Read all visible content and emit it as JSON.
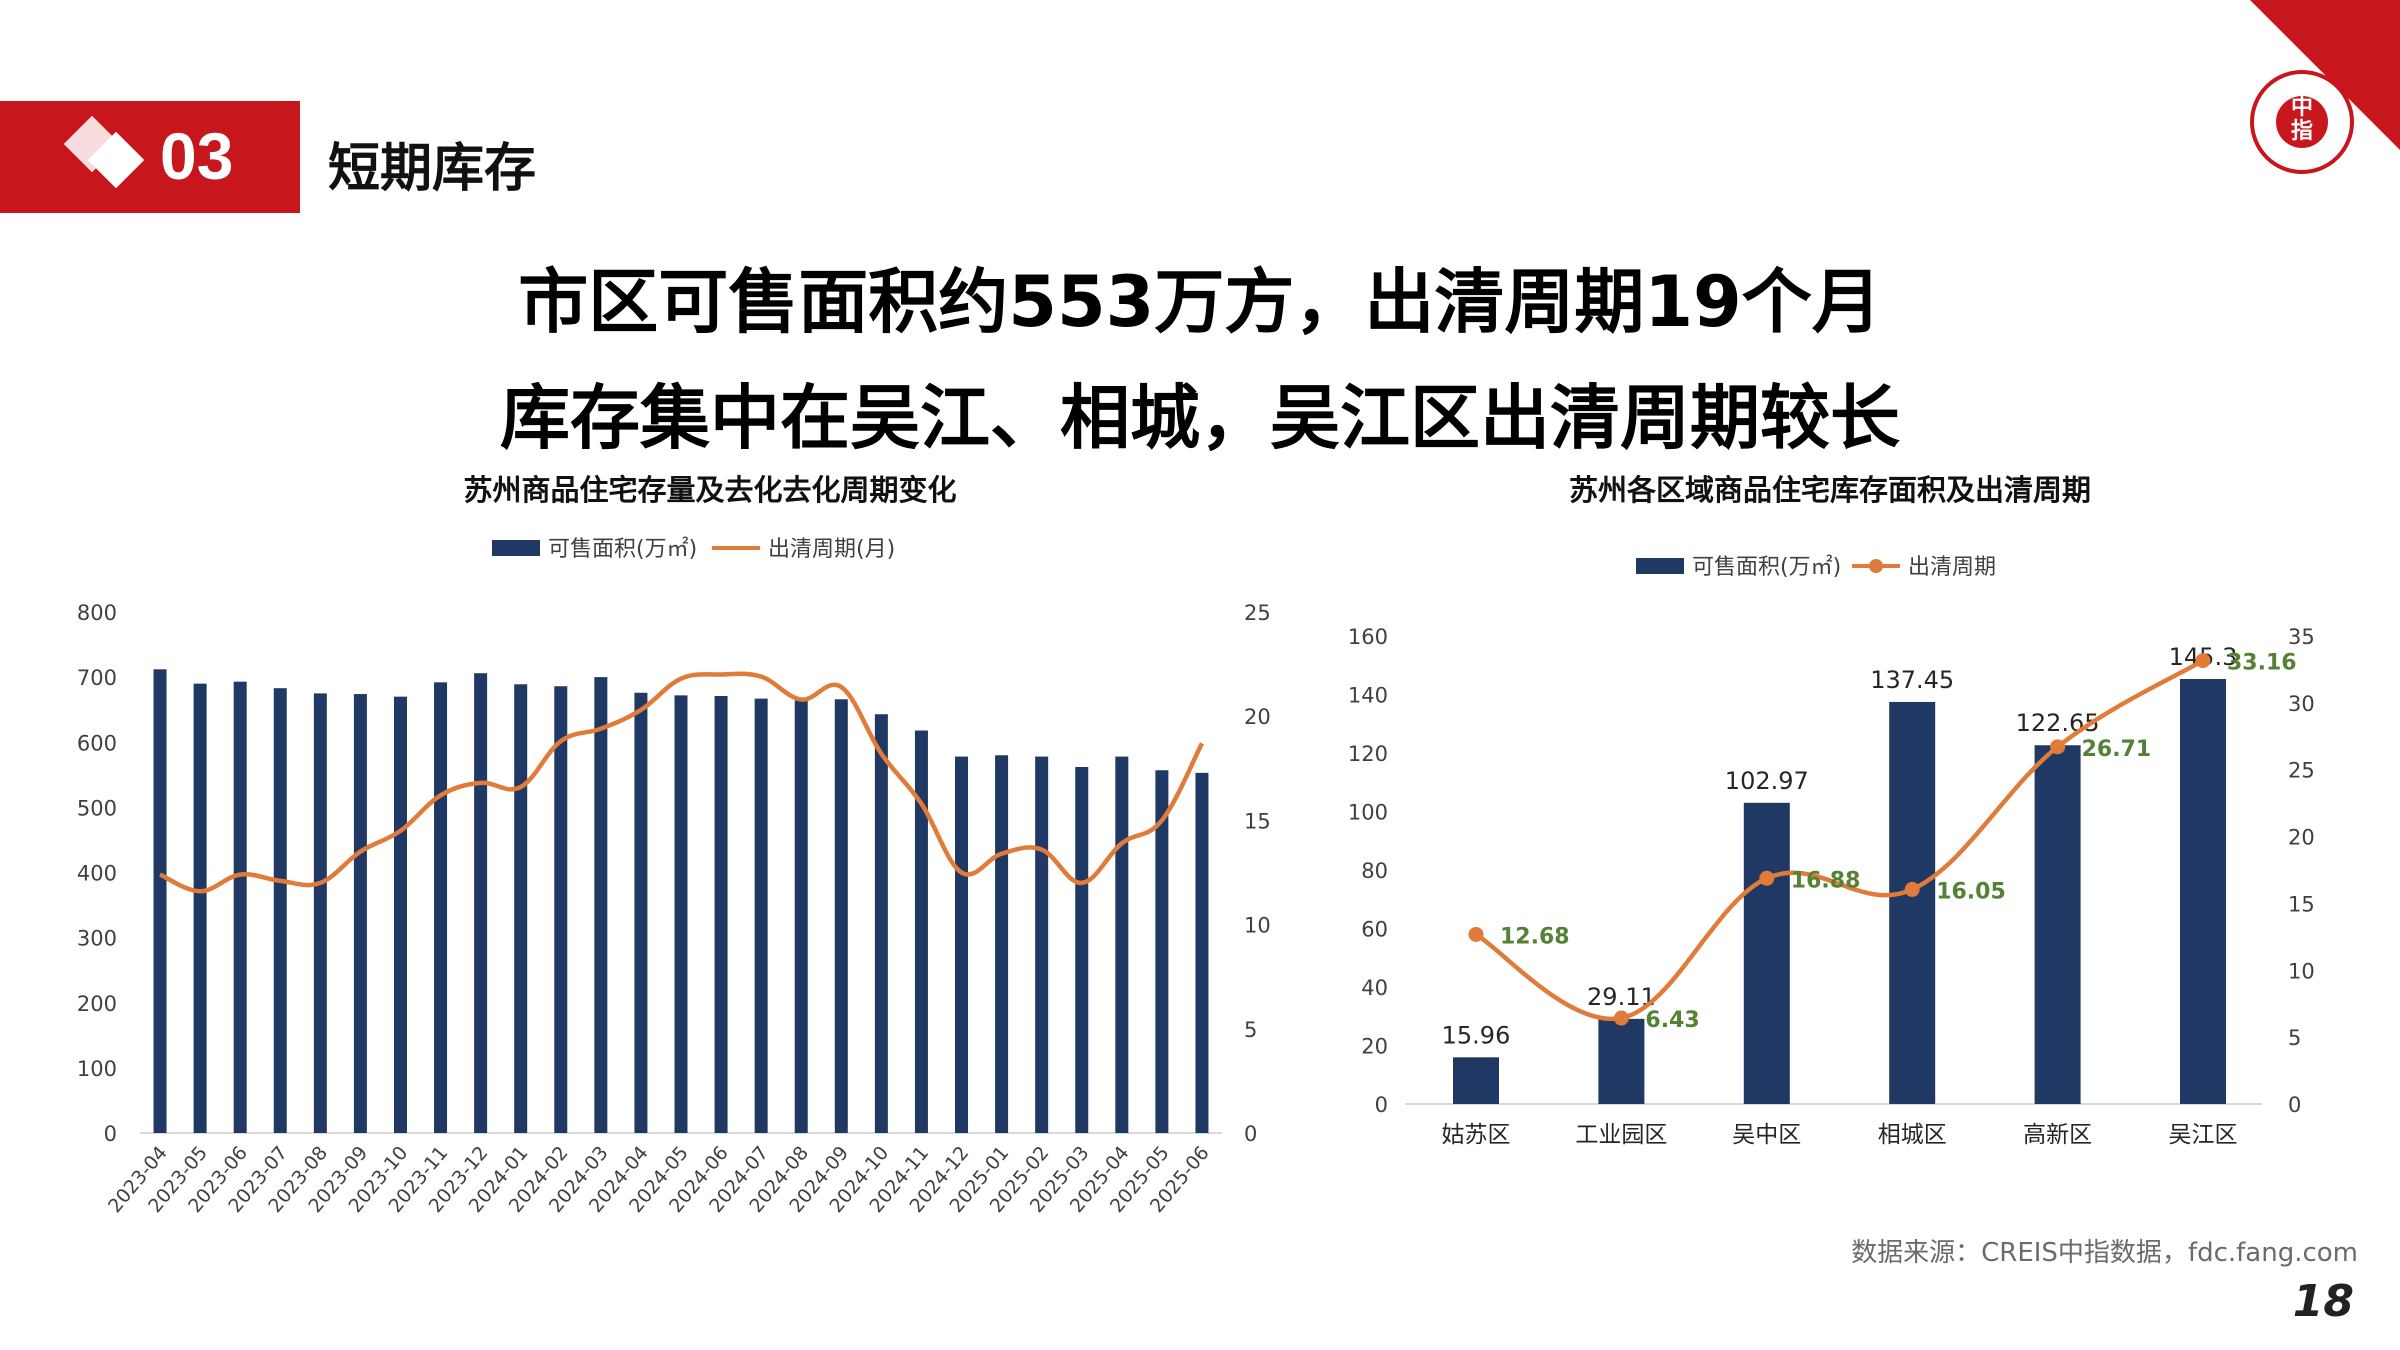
{
  "header": {
    "section_number": "03",
    "section_title": "短期库存"
  },
  "headline": {
    "line1": "市区可售面积约553万方，出清周期19个月",
    "line2": "库存集中在吴江、相城，吴江区出清周期较长"
  },
  "footer": {
    "source": "数据来源：CREIS中指数据，fdc.fang.com",
    "page_number": "18"
  },
  "colors": {
    "brand_red": "#c8161d",
    "bar_navy": "#1f3864",
    "line_orange": "#e07b39",
    "label_green": "#548235"
  },
  "chart_data": [
    {
      "type": "bar",
      "title": "苏州商品住宅存量及去化去化周期变化",
      "categories": [
        "2023-04",
        "2023-05",
        "2023-06",
        "2023-07",
        "2023-08",
        "2023-09",
        "2023-10",
        "2023-11",
        "2023-12",
        "2024-01",
        "2024-02",
        "2024-03",
        "2024-04",
        "2024-05",
        "2024-06",
        "2024-07",
        "2024-08",
        "2024-09",
        "2024-10",
        "2024-11",
        "2024-12",
        "2025-01",
        "2025-02",
        "2025-03",
        "2025-04",
        "2025-05",
        "2025-06"
      ],
      "series": [
        {
          "name": "可售面积(万㎡)",
          "type": "bar",
          "axis": "left",
          "values": [
            712,
            690,
            693,
            683,
            675,
            674,
            670,
            692,
            706,
            689,
            686,
            700,
            676,
            672,
            671,
            667,
            664,
            666,
            643,
            618,
            578,
            580,
            578,
            562,
            578,
            557,
            553
          ]
        },
        {
          "name": "出清周期(月)",
          "type": "line",
          "axis": "right",
          "values": [
            12.4,
            11.6,
            12.4,
            12.1,
            12.0,
            13.5,
            14.5,
            16.2,
            16.8,
            16.6,
            18.8,
            19.4,
            20.3,
            21.8,
            22.0,
            21.9,
            20.8,
            21.4,
            18.2,
            15.8,
            12.5,
            13.4,
            13.6,
            12.0,
            13.9,
            15.0,
            18.7
          ]
        }
      ],
      "ylim_left": [
        0,
        800
      ],
      "yticks_left": [
        0,
        100,
        200,
        300,
        400,
        500,
        600,
        700,
        800
      ],
      "ylim_right": [
        0,
        25
      ],
      "yticks_right": [
        0,
        5,
        10,
        15,
        20,
        25
      ],
      "legend": "top-center",
      "grid": false
    },
    {
      "type": "bar",
      "title": "苏州各区域商品住宅库存面积及出清周期",
      "categories": [
        "姑苏区",
        "工业园区",
        "吴中区",
        "相城区",
        "高新区",
        "吴江区"
      ],
      "series": [
        {
          "name": "可售面积(万㎡)",
          "type": "bar",
          "axis": "left",
          "values": [
            15.96,
            29.11,
            102.97,
            137.45,
            122.65,
            145.3
          ],
          "labels": [
            "15.96",
            "29.11",
            "102.97",
            "137.45",
            "122.65",
            "145.3"
          ]
        },
        {
          "name": "出清周期",
          "type": "line",
          "axis": "right",
          "values": [
            12.68,
            6.43,
            16.88,
            16.05,
            26.71,
            33.16
          ],
          "labels": [
            "12.68",
            "6.43",
            "16.88",
            "16.05",
            "26.71",
            "33.16"
          ]
        }
      ],
      "ylim_left": [
        0,
        160
      ],
      "yticks_left": [
        0,
        20,
        40,
        60,
        80,
        100,
        120,
        140,
        160
      ],
      "ylim_right": [
        0,
        35
      ],
      "yticks_right": [
        0,
        5,
        10,
        15,
        20,
        25,
        30,
        35
      ],
      "legend": "top-center",
      "grid": false
    }
  ]
}
